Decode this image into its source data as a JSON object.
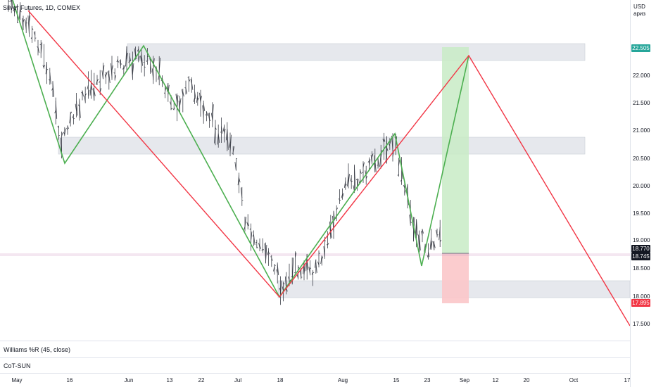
{
  "title": "Silver Futures, 1D, COMEX",
  "currency": {
    "code": "USD",
    "sub": "ариз"
  },
  "y_ticks": [
    "22.000",
    "21.500",
    "21.000",
    "20.500",
    "20.000",
    "19.500",
    "19.000",
    "18.500",
    "18.000",
    "17.500"
  ],
  "x_ticks": [
    "May",
    "16",
    "Jun",
    "13",
    "22",
    "Jul",
    "18",
    "Aug",
    "15",
    "23",
    "Sep",
    "12",
    "20",
    "Oct",
    "17"
  ],
  "price_tags": {
    "top": "22.505",
    "current_a": "18.770",
    "current_b": "18.745",
    "bottom": "17.895"
  },
  "indicators": {
    "williams": "Williams %R (45, close)",
    "cot": "CoT-SUN"
  },
  "colors": {
    "zigzag_green": "#4caf50",
    "trend_red": "#f23645",
    "zone_fill": "#e6e8ed",
    "profit": "#c8ebc5",
    "loss": "#fbc6c9",
    "tag_green": "#26a69a",
    "tag_dark": "#131722",
    "tag_red": "#f23645"
  }
}
